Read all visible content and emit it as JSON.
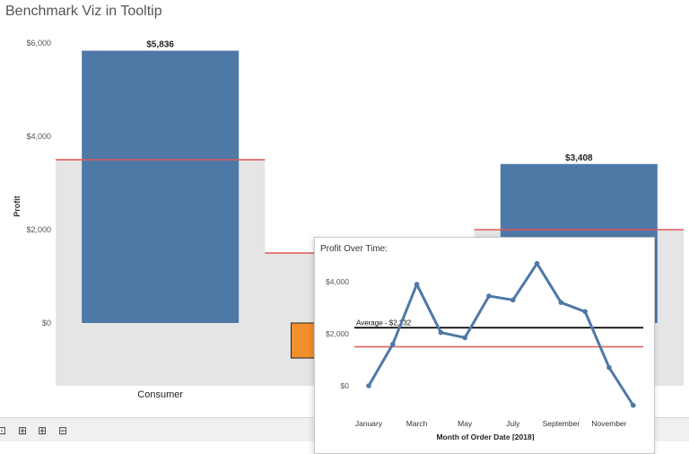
{
  "title": "Benchmark Viz in Tooltip",
  "toolbar": {
    "icons": [
      "expand-icon",
      "add-sheet-icon",
      "add-dashboard-icon",
      "add-story-icon"
    ]
  },
  "tooltip": {
    "title": "Profit Over Time:"
  },
  "colors": {
    "bar_blue": "#4e79a7",
    "bar_orange": "#f28e2b",
    "benchmark_red": "#e15759",
    "band_gray": "#e5e5e5",
    "avg_line": "#000000"
  },
  "chart_data": [
    {
      "type": "bar",
      "categories": [
        "Consumer",
        "",
        ""
      ],
      "values": [
        5836,
        -750,
        3408
      ],
      "benchmarks": [
        3500,
        1500,
        2000
      ],
      "data_labels": [
        "$5,836",
        "",
        "$3,408"
      ],
      "ylabel": "Profit",
      "yticks": [
        "$0",
        "$2,000",
        "$4,000",
        "$6,000"
      ],
      "ylim": [
        -1300,
        6200
      ],
      "grid": false
    },
    {
      "type": "line",
      "title": "Profit Over Time:",
      "x": [
        "January",
        "February",
        "March",
        "April",
        "May",
        "June",
        "July",
        "August",
        "September",
        "October",
        "November",
        "December"
      ],
      "xticks": [
        "January",
        "March",
        "May",
        "July",
        "September",
        "November"
      ],
      "values": [
        0,
        1600,
        3900,
        2050,
        1850,
        3450,
        3300,
        4700,
        3200,
        2850,
        700,
        -750
      ],
      "xlabel": "Month of Order Date [2018]",
      "yticks": [
        "$0",
        "$2,000",
        "$4,000"
      ],
      "ylim": [
        -1000,
        5000
      ],
      "reference_lines": [
        {
          "label": "Average - $2,232",
          "value": 2232,
          "color": "#000000"
        },
        {
          "label": "",
          "value": 1500,
          "color": "#e15759"
        }
      ],
      "grid": false
    }
  ]
}
